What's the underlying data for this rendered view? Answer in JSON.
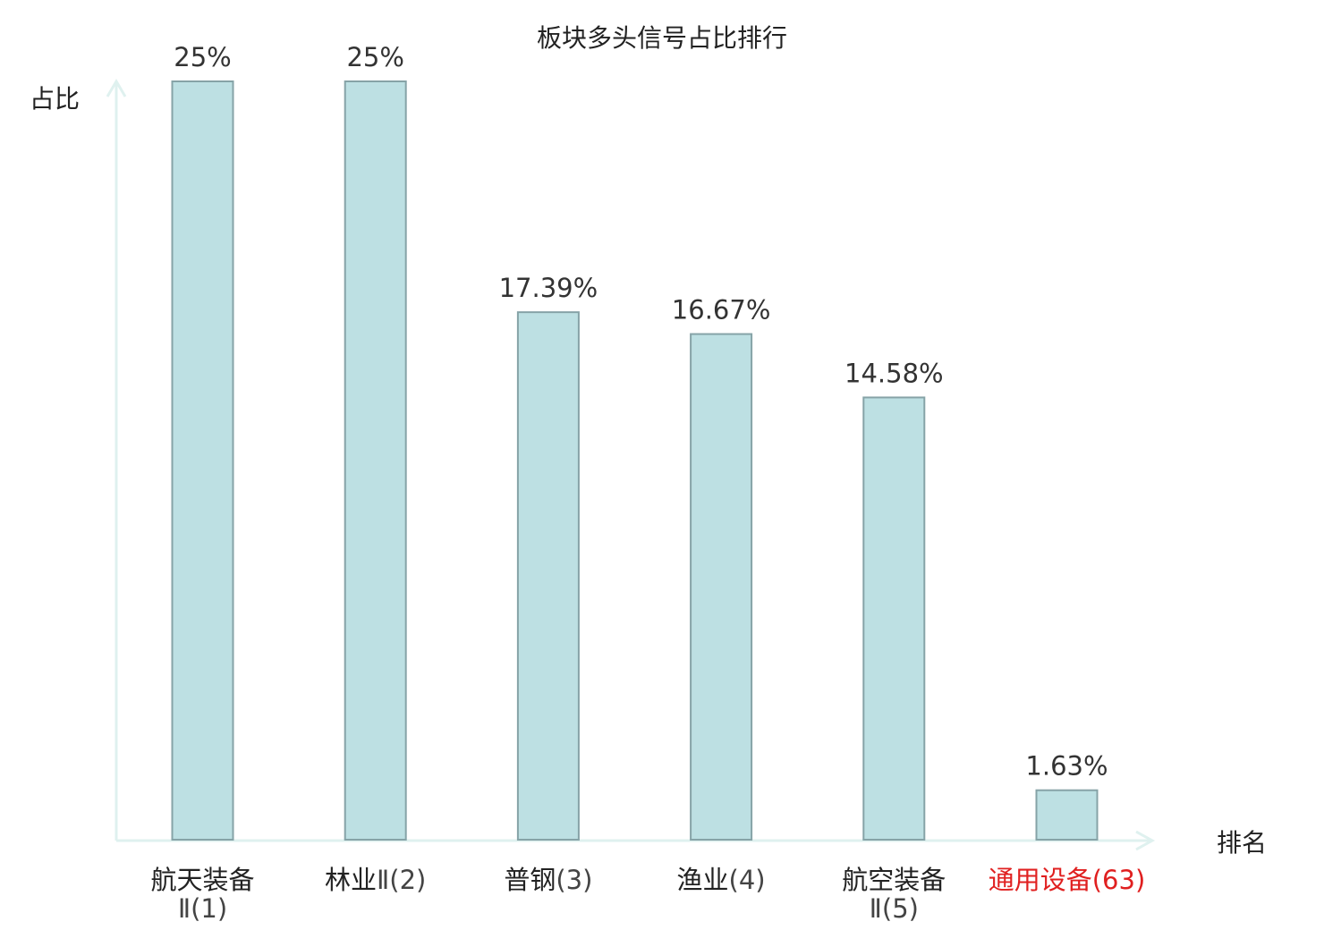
{
  "chart_data": {
    "type": "bar",
    "title": "板块多头信号占比排行",
    "xlabel": "排名",
    "ylabel": "占比",
    "ylim": [
      0,
      25
    ],
    "categories": [
      {
        "name": "航天装备",
        "rank_text": "Ⅱ(1)",
        "highlight": false
      },
      {
        "name": "林业",
        "rank_text": "Ⅱ(2)",
        "highlight": false
      },
      {
        "name": "普钢",
        "rank_text": "(3)",
        "highlight": false
      },
      {
        "name": "渔业",
        "rank_text": "(4)",
        "highlight": false
      },
      {
        "name": "航空装备",
        "rank_text": "Ⅱ(5)",
        "highlight": false
      },
      {
        "name": "通用设备",
        "rank_text": "(63)",
        "highlight": true
      }
    ],
    "values": [
      25,
      25,
      17.39,
      16.67,
      14.58,
      1.63
    ],
    "value_labels": [
      "25%",
      "25%",
      "17.39%",
      "16.67%",
      "14.58%",
      "1.63%"
    ],
    "grid": false,
    "colors": {
      "bar_fill": "#bde0e3",
      "bar_stroke": "#86a3a7",
      "axis": "#dff1ef",
      "highlight_text": "#e02020"
    }
  }
}
